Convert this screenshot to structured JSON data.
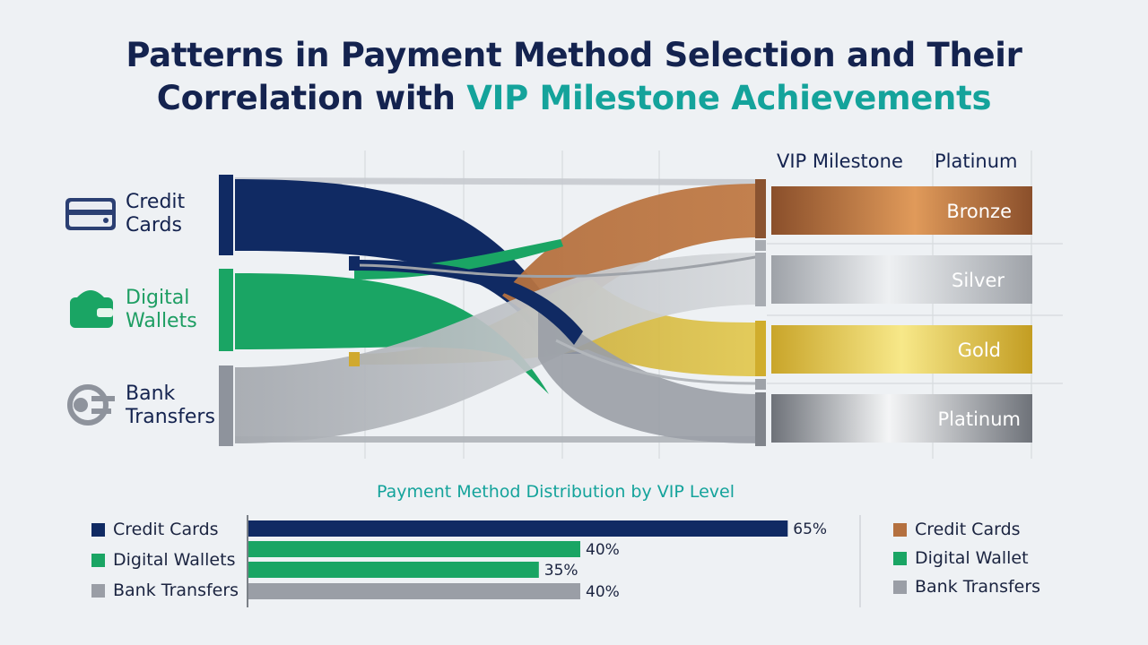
{
  "title_line1": "Patterns in Payment Method Selection and Their",
  "title_line2_plain": "Correlation with ",
  "title_line2_accent": "VIP Milestone Achievements",
  "sources": [
    {
      "line1": "Credit",
      "line2": "Cards",
      "icon": "credit-card-icon",
      "color": "#102a63"
    },
    {
      "line1": "Digital",
      "line2": "Wallets",
      "icon": "wallet-icon",
      "color": "#1aa564"
    },
    {
      "line1": "Bank",
      "line2": "Transfers",
      "icon": "bank-transfer-icon",
      "color": "#8e939c"
    }
  ],
  "vip_header": {
    "col1": "VIP Milestone",
    "col2": "Platinum"
  },
  "tiers": [
    "Bronze",
    "Silver",
    "Gold",
    "Platinum"
  ],
  "colors": {
    "navy": "#102a63",
    "green": "#1aa564",
    "gray": "#9a9ea6",
    "bronze": "#b4703f",
    "silver": "#bfc3c8",
    "gold": "#d9bb3c",
    "platinum": "#7c8088",
    "teal": "#14a39b"
  },
  "chart_data": {
    "type": "bar",
    "title": "Payment Method Distribution by VIP Level",
    "categories": [
      "Credit Cards",
      "Digital Wallets",
      "Digital Wallets",
      "Bank Transfers"
    ],
    "values": [
      65,
      40,
      35,
      40
    ],
    "value_labels": [
      "65%",
      "40%",
      "35%",
      "40%"
    ],
    "bar_colors": [
      "#102a63",
      "#1aa564",
      "#1aa564",
      "#9a9ea6"
    ],
    "xlim": [
      0,
      100
    ],
    "legend_left": [
      {
        "label": "Credit Cards",
        "color": "#102a63"
      },
      {
        "label": "Digital Wallets",
        "color": "#1aa564"
      },
      {
        "label": "Bank Transfers",
        "color": "#9a9ea6"
      }
    ],
    "legend_right": [
      {
        "label": "Credit Cards",
        "color": "#b4703f"
      },
      {
        "label": "Digital Wallet",
        "color": "#1aa564"
      },
      {
        "label": "Bank Transfers",
        "color": "#9a9ea6"
      }
    ]
  }
}
